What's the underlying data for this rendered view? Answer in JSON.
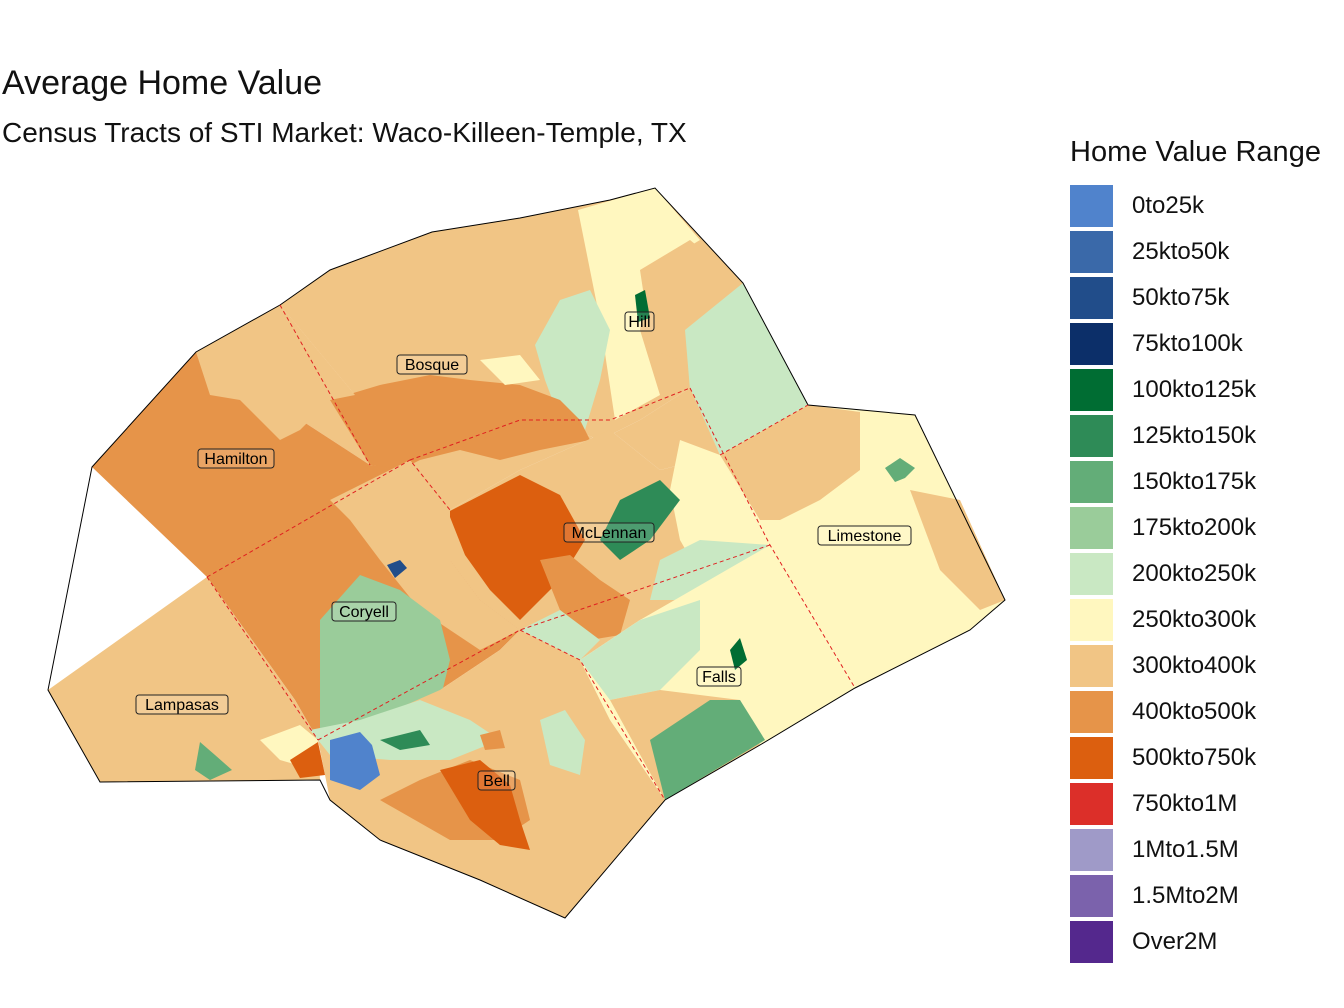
{
  "title": "Average Home Value",
  "subtitle": "Census Tracts of STI Market: Waco-Killeen-Temple, TX",
  "legend": {
    "title": "Home Value Range",
    "items": [
      {
        "label": "0to25k",
        "color": "#5083cc"
      },
      {
        "label": "25kto50k",
        "color": "#3a69a9"
      },
      {
        "label": "50kto75k",
        "color": "#214d8a"
      },
      {
        "label": "75kto100k",
        "color": "#0c2f69"
      },
      {
        "label": "100kto125k",
        "color": "#006d33"
      },
      {
        "label": "125kto150k",
        "color": "#2e8b57"
      },
      {
        "label": "150kto175k",
        "color": "#63ad78"
      },
      {
        "label": "175kto200k",
        "color": "#9acc9a"
      },
      {
        "label": "200kto250k",
        "color": "#c9e8c3"
      },
      {
        "label": "250kto300k",
        "color": "#fff7bf"
      },
      {
        "label": "300kto400k",
        "color": "#f1c585"
      },
      {
        "label": "400kto500k",
        "color": "#e69449"
      },
      {
        "label": "500kto750k",
        "color": "#dc5f0f"
      },
      {
        "label": "750kto1M",
        "color": "#dc2f29"
      },
      {
        "label": "1Mto1.5M",
        "color": "#9f9ac8"
      },
      {
        "label": "1.5Mto2M",
        "color": "#7b62ac"
      },
      {
        "label": "Over2M",
        "color": "#54288d"
      }
    ]
  },
  "counties": [
    {
      "name": "Hill"
    },
    {
      "name": "Bosque"
    },
    {
      "name": "Hamilton"
    },
    {
      "name": "McLennan"
    },
    {
      "name": "Limestone"
    },
    {
      "name": "Coryell"
    },
    {
      "name": "Lampasas"
    },
    {
      "name": "Falls"
    },
    {
      "name": "Bell"
    }
  ]
}
